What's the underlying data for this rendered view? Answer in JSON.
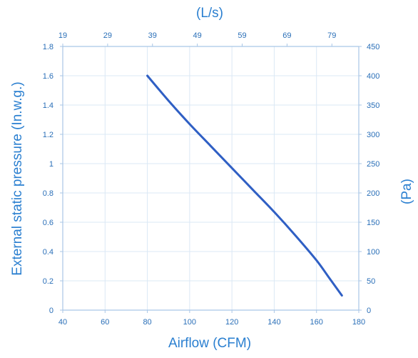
{
  "chart_data": {
    "type": "line",
    "title": "",
    "xlabel": "Airflow (CFM)",
    "ylabel": "External static pressure (In.w.g.)",
    "x2label": "(L/s)",
    "y2label": "(Pa)",
    "xlim": [
      40,
      180
    ],
    "ylim": [
      0,
      1.8
    ],
    "x2lim": [
      19,
      85
    ],
    "y2lim": [
      0,
      450
    ],
    "x_ticks": [
      "40",
      "60",
      "80",
      "100",
      "120",
      "140",
      "160",
      "180"
    ],
    "y_ticks": [
      "0",
      "0.2",
      "0.4",
      "0.6",
      "0.8",
      "1",
      "1.2",
      "1.4",
      "1.6",
      "1.8"
    ],
    "x2_ticks": [
      "19",
      "29",
      "39",
      "49",
      "59",
      "69",
      "79"
    ],
    "y2_ticks": [
      "0",
      "50",
      "100",
      "150",
      "200",
      "250",
      "300",
      "350",
      "400",
      "450"
    ],
    "grid": true,
    "legend": "none",
    "series": [
      {
        "x": [
          80,
          90,
          100,
          110,
          120,
          130,
          140,
          150,
          160,
          166,
          172
        ],
        "y": [
          1.6,
          1.43,
          1.27,
          1.12,
          0.97,
          0.82,
          0.67,
          0.51,
          0.34,
          0.22,
          0.1
        ]
      }
    ],
    "colors": {
      "line": "#2f5fc4",
      "label": "#2a7fd0",
      "tick": "#2a6fb8",
      "grid": "#dbe8f5",
      "axis": "#a9c6e6"
    }
  }
}
